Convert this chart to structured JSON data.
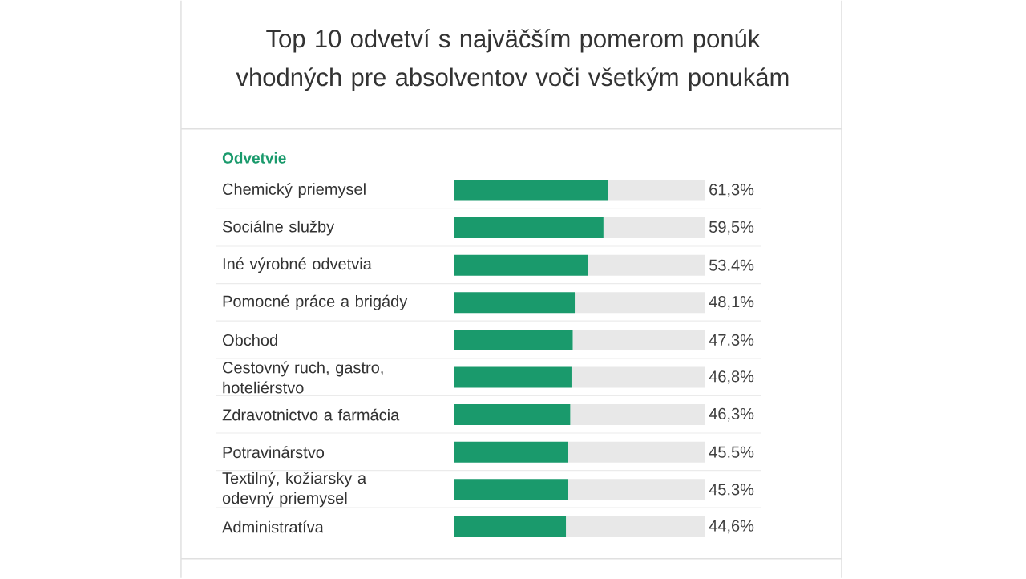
{
  "chart_data": {
    "type": "bar",
    "orientation": "horizontal",
    "stacked": true,
    "title": "Top 10 odvetví s najväčším pomerom ponúk vhodných pre absolventov voči všetkým ponukám",
    "ylabel": "Odvetvie",
    "categories": [
      "Chemický priemysel",
      "Sociálne služby",
      "Iné výrobné odvetvia",
      "Pomocné práce a brigády",
      "Obchod",
      "Cestovný ruch, gastro, hoteliérstvo",
      "Zdravotnictvo a farmácia",
      "Potravinárstvo",
      "Textilný, kožiarsky a odevný priemysel",
      "Administratíva"
    ],
    "series": [
      {
        "color": "#1a9a6c",
        "values": [
          61.3,
          59.5,
          53.4,
          48.1,
          47.3,
          46.8,
          46.3,
          45.5,
          45.3,
          44.6
        ],
        "value_labels": [
          "61,3%",
          "59,5%",
          "53.4%",
          "48,1%",
          "47.3%",
          "46,8%",
          "46,3%",
          "45.5%",
          "45.3%",
          "44,6%"
        ]
      },
      {
        "color": "#e8e8e8",
        "values": [
          38.7,
          40.5,
          46.6,
          51.9,
          52.7,
          53.2,
          53.7,
          54.5,
          54.7,
          55.4
        ]
      }
    ],
    "xlim": [
      0,
      100
    ],
    "tick_labels": "y"
  }
}
